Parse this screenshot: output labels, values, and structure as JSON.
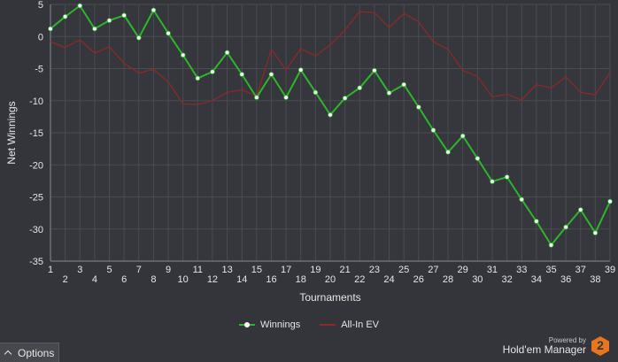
{
  "chart_data": {
    "type": "line",
    "xlabel": "Tournaments",
    "ylabel": "Net Winnings",
    "xlim": [
      1,
      39
    ],
    "ylim": [
      -35,
      5
    ],
    "yticks": [
      5,
      0,
      -5,
      -10,
      -15,
      -20,
      -25,
      -30,
      -35
    ],
    "grid": true,
    "legend_position": "bottom-center",
    "x": [
      1,
      2,
      3,
      4,
      5,
      6,
      7,
      8,
      9,
      10,
      11,
      12,
      13,
      14,
      15,
      16,
      17,
      18,
      19,
      20,
      21,
      22,
      23,
      24,
      25,
      26,
      27,
      28,
      29,
      30,
      31,
      32,
      33,
      34,
      35,
      36,
      37,
      38,
      39
    ],
    "series": [
      {
        "name": "Winnings",
        "color": "#2db52d",
        "markers": true,
        "values": [
          1.2,
          3.1,
          4.8,
          1.2,
          2.5,
          3.3,
          -0.2,
          4.1,
          0.5,
          -2.9,
          -6.5,
          -5.5,
          -2.5,
          -5.9,
          -9.5,
          -5.9,
          -9.5,
          -5.2,
          -8.7,
          -12.2,
          -9.6,
          -8.0,
          -5.3,
          -8.8,
          -7.5,
          -11.0,
          -14.6,
          -18.0,
          -15.5,
          -19.0,
          -22.6,
          -21.9,
          -25.4,
          -28.8,
          -32.5,
          -29.7,
          -27.0,
          -30.6,
          -25.7
        ]
      },
      {
        "name": "All-In EV",
        "color": "#8a2a2a",
        "markers": false,
        "values": [
          -0.8,
          -1.7,
          -0.5,
          -2.6,
          -1.6,
          -4.2,
          -5.7,
          -5.1,
          -7.1,
          -10.5,
          -10.6,
          -10.0,
          -8.7,
          -8.3,
          -9.3,
          -2.0,
          -5.2,
          -1.9,
          -3.0,
          -1.3,
          1.0,
          3.9,
          3.7,
          1.4,
          3.6,
          2.3,
          -0.8,
          -2.0,
          -5.3,
          -6.2,
          -9.4,
          -9.0,
          -9.9,
          -7.5,
          -8.0,
          -6.3,
          -8.7,
          -9.1,
          -5.6
        ]
      }
    ]
  },
  "legend": [
    {
      "label": "Winnings",
      "color": "#2db52d",
      "marker": true
    },
    {
      "label": "All-In EV",
      "color": "#8a2a2a",
      "marker": false
    }
  ],
  "footer": {
    "options_label": "Options",
    "powered_by": "Powered by",
    "brand_name": "Hold'em Manager",
    "brand_badge": "2"
  },
  "colors": {
    "background": "#33353a",
    "grid": "#4a4c51",
    "axis": "#8a8c90",
    "badge": "#e8761f"
  }
}
